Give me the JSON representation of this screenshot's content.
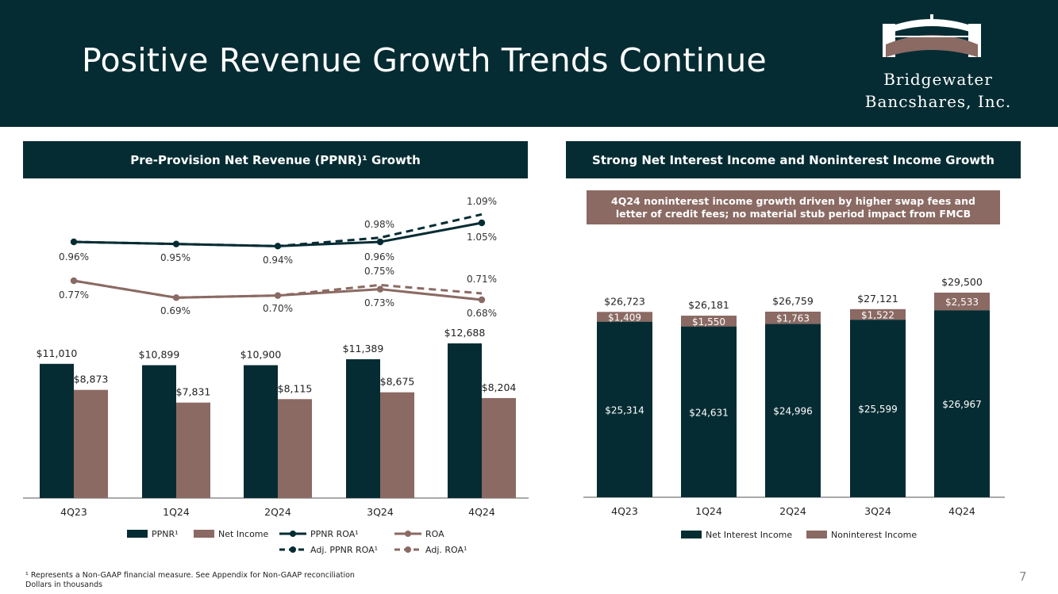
{
  "page": {
    "title": "Positive Revenue Growth Trends Continue",
    "page_number": "7",
    "footnote_line1": "¹ Represents a Non-GAAP financial measure. See Appendix for Non-GAAP reconciliation",
    "footnote_line2": "Dollars in thousands"
  },
  "logo": {
    "line1": "Bridgewater",
    "line2": "Bancshares, Inc."
  },
  "colors": {
    "dark": "#062c33",
    "brown": "#8a6a63",
    "axis": "#555555"
  },
  "left_panel": {
    "header": "Pre-Provision Net Revenue (PPNR)¹ Growth"
  },
  "right_panel": {
    "header": "Strong Net Interest Income and Noninterest Income Growth",
    "callout": "4Q24 noninterest income growth driven by higher swap fees and letter of credit fees; no material stub period impact from FMCB"
  },
  "chart_data": [
    {
      "type": "bar",
      "categories": [
        "4Q23",
        "1Q24",
        "2Q24",
        "3Q24",
        "4Q24"
      ],
      "series": [
        {
          "name": "PPNR¹",
          "values": [
            11010,
            10899,
            10900,
            11389,
            12688
          ],
          "labels": [
            "$11,010",
            "$10,899",
            "$10,900",
            "$11,389",
            "$12,688"
          ]
        },
        {
          "name": "Net Income",
          "values": [
            8873,
            7831,
            8115,
            8675,
            8204
          ],
          "labels": [
            "$8,873",
            "$7,831",
            "$8,115",
            "$8,675",
            "$8,204"
          ]
        }
      ],
      "line_series": [
        {
          "name": "PPNR ROA¹",
          "style": "solid",
          "values": [
            0.96,
            0.95,
            0.94,
            0.96,
            1.05
          ],
          "labels": [
            "0.96%",
            "0.95%",
            "0.94%",
            "0.96%",
            "1.05%"
          ]
        },
        {
          "name": "Adj. PPNR ROA¹",
          "style": "dashed",
          "values": [
            0.96,
            0.95,
            0.94,
            0.98,
            1.09
          ],
          "labels": [
            "",
            "",
            "",
            "0.98%",
            "1.09%"
          ]
        },
        {
          "name": "ROA",
          "style": "solid",
          "values": [
            0.77,
            0.69,
            0.7,
            0.73,
            0.68
          ],
          "labels": [
            "0.77%",
            "0.69%",
            "0.70%",
            "0.73%",
            "0.68%"
          ]
        },
        {
          "name": "Adj. ROA¹",
          "style": "dashed",
          "values": [
            0.77,
            0.69,
            0.7,
            0.75,
            0.71
          ],
          "labels": [
            "",
            "",
            "",
            "0.75%",
            "0.71%"
          ]
        }
      ],
      "ylim": [
        0,
        14000
      ],
      "legend": [
        "PPNR¹",
        "Net Income",
        "PPNR ROA¹",
        "ROA",
        "Adj. PPNR ROA¹",
        "Adj. ROA¹"
      ],
      "legend_position": "bottom"
    },
    {
      "type": "stacked-bar",
      "categories": [
        "4Q23",
        "1Q24",
        "2Q24",
        "3Q24",
        "4Q24"
      ],
      "series": [
        {
          "name": "Net Interest Income",
          "values": [
            25314,
            24631,
            24996,
            25599,
            26967
          ],
          "labels": [
            "$25,314",
            "$24,631",
            "$24,996",
            "$25,599",
            "$26,967"
          ]
        },
        {
          "name": "Noninterest Income",
          "values": [
            1409,
            1550,
            1763,
            1522,
            2533
          ],
          "labels": [
            "$1,409",
            "$1,550",
            "$1,763",
            "$1,522",
            "$2,533"
          ]
        }
      ],
      "totals": [
        "$26,723",
        "$26,181",
        "$26,759",
        "$27,121",
        "$29,500"
      ],
      "ylim": [
        0,
        30000
      ],
      "legend": [
        "Net Interest Income",
        "Noninterest Income"
      ],
      "legend_position": "bottom"
    }
  ]
}
